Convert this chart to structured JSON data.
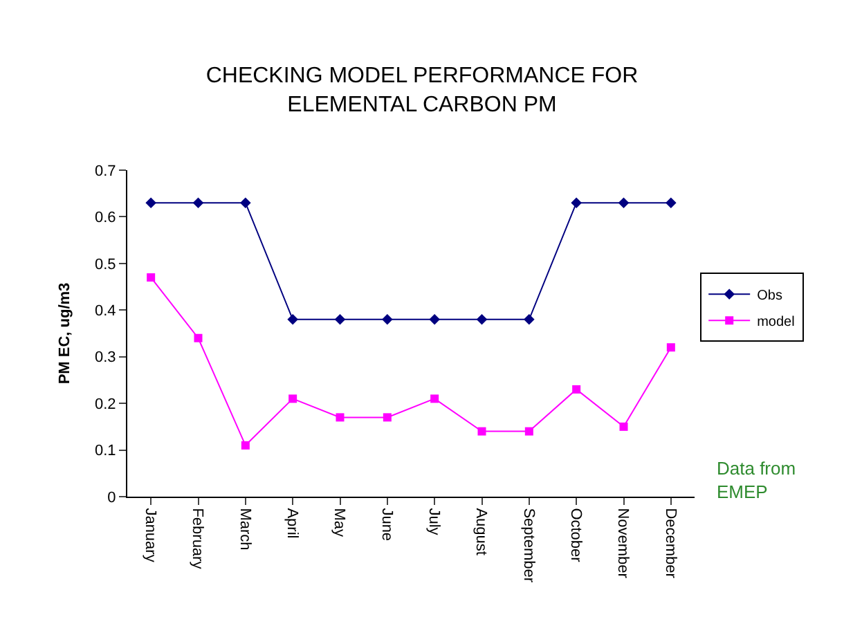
{
  "chart_data": {
    "type": "line",
    "title": "CHECKING MODEL PERFORMANCE FOR\nELEMENTAL CARBON PM",
    "ylabel": "PM EC, ug/m3",
    "categories": [
      "January",
      "February",
      "March",
      "April",
      "May",
      "June",
      "July",
      "August",
      "September",
      "October",
      "November",
      "December"
    ],
    "series": [
      {
        "name": "Obs",
        "color": "#000080",
        "marker": "diamond",
        "values": [
          0.63,
          0.63,
          0.63,
          0.38,
          0.38,
          0.38,
          0.38,
          0.38,
          0.38,
          0.63,
          0.63,
          0.63
        ]
      },
      {
        "name": "model",
        "color": "#ff00ff",
        "marker": "square",
        "values": [
          0.47,
          0.34,
          0.11,
          0.21,
          0.17,
          0.17,
          0.21,
          0.14,
          0.14,
          0.23,
          0.15,
          0.32
        ]
      }
    ],
    "ylim": [
      0,
      0.7
    ],
    "yticks": [
      0,
      0.1,
      0.2,
      0.3,
      0.4,
      0.5,
      0.6,
      0.7
    ],
    "legend": "right",
    "annotations": [
      "Data from\nEMEP"
    ]
  }
}
